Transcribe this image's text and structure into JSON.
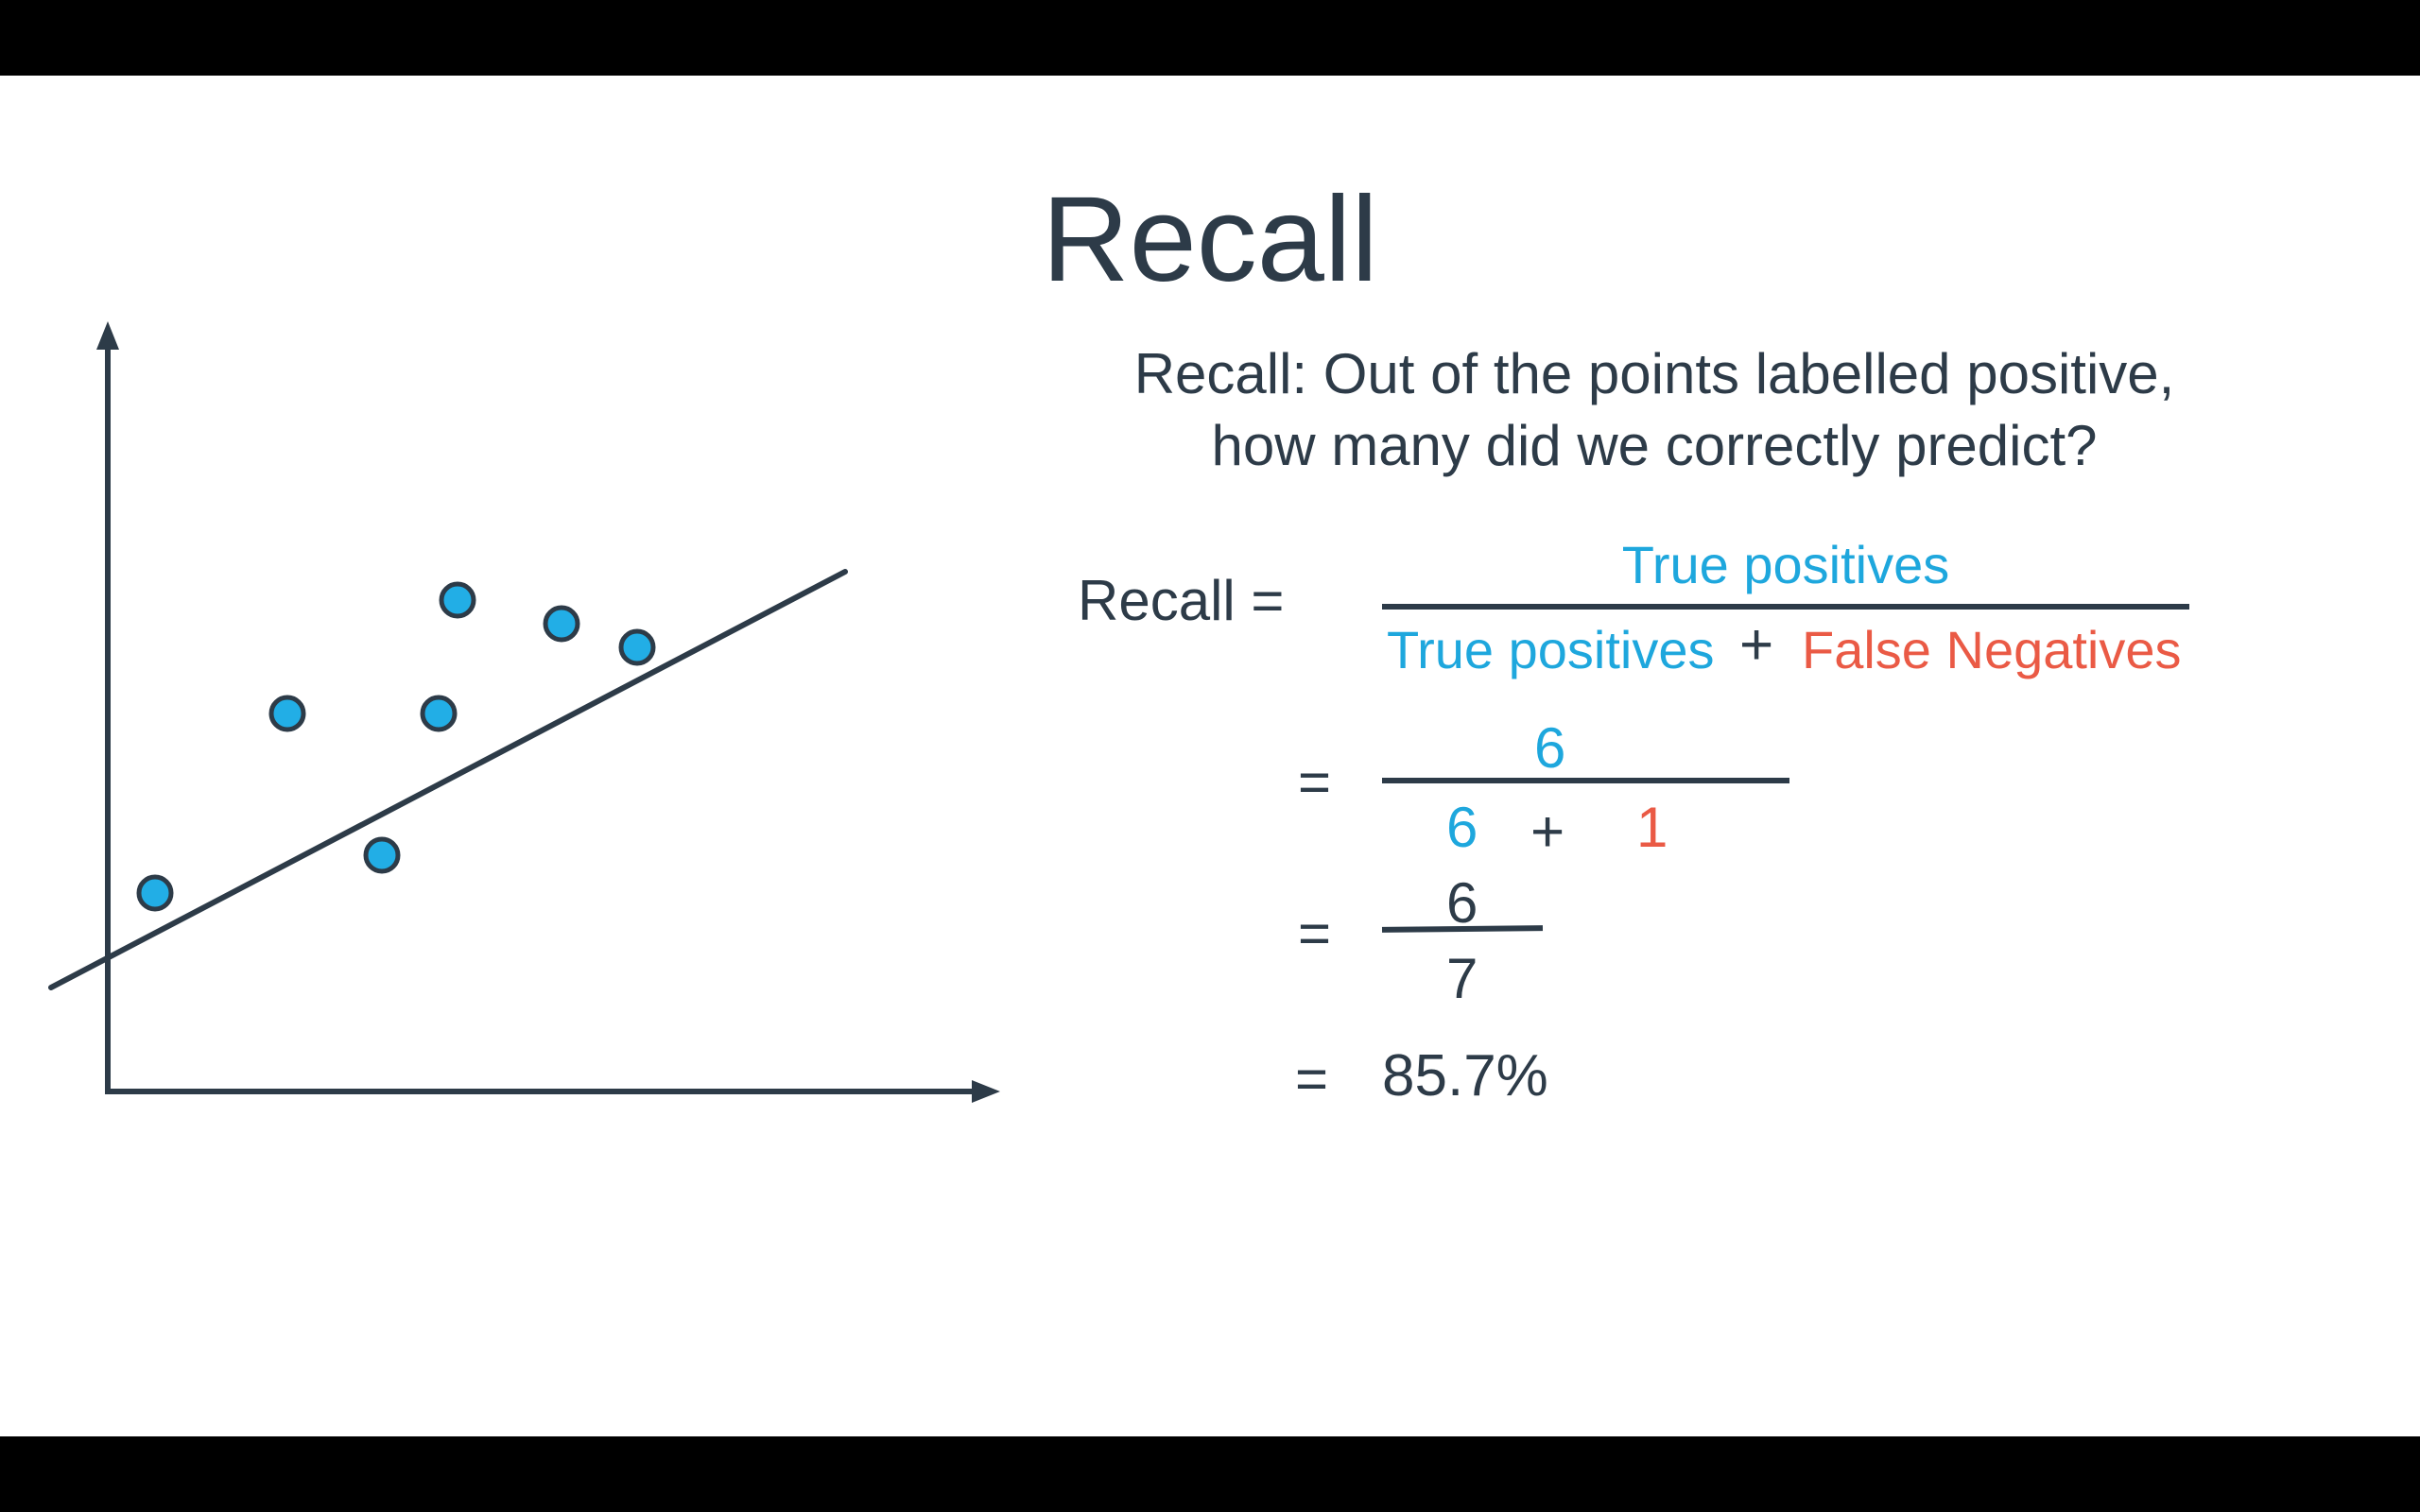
{
  "title": "Recall",
  "question": {
    "line1": "Recall: Out of the points labelled positive,",
    "line2": "how many did we correctly predict?"
  },
  "formula": {
    "lhs": "Recall =",
    "numerator": "True positives",
    "denominator_left": "True positives",
    "operator": "+",
    "denominator_right": "False Negatives"
  },
  "step1": {
    "equals": "=",
    "numerator": "6",
    "denominator_left": "6",
    "operator": "+",
    "denominator_right": "1"
  },
  "step2": {
    "equals": "=",
    "numerator": "6",
    "denominator": "7"
  },
  "result": {
    "equals": "=",
    "value": "85.7%"
  },
  "colors": {
    "text": "#2d3b48",
    "positive": "#1ea7dd",
    "negative": "#ea5a45",
    "point_fill": "#22aee6"
  },
  "chart_data": {
    "type": "scatter",
    "title": "",
    "xlabel": "",
    "ylabel": "",
    "points": [
      {
        "x": 0.5,
        "y": 2.1
      },
      {
        "x": 1.9,
        "y": 4.0
      },
      {
        "x": 2.9,
        "y": 2.5
      },
      {
        "x": 3.5,
        "y": 4.0
      },
      {
        "x": 3.7,
        "y": 5.2
      },
      {
        "x": 4.8,
        "y": 4.95
      },
      {
        "x": 5.6,
        "y": 4.7
      }
    ],
    "boundary_line": {
      "x1": -0.6,
      "y1": 1.1,
      "x2": 7.8,
      "y2": 5.5
    },
    "xlim": [
      0,
      7.2
    ],
    "ylim": [
      0,
      5.6
    ],
    "grid": false
  }
}
